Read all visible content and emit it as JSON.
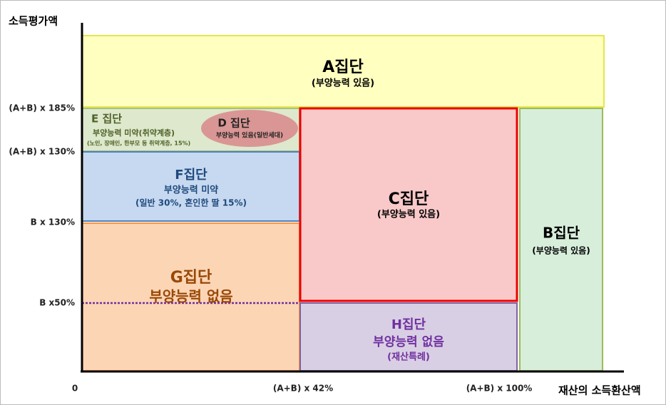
{
  "axes": {
    "y_title": "소득평가액",
    "x_title": "재산의 소득환산액",
    "origin": "0",
    "y_labels": [
      "(A+B) x 185%",
      "(A+B) x 130%",
      "B x 130%",
      "B x50%"
    ],
    "x_labels": [
      "(A+B) x 42%",
      "(A+B) x 100%"
    ]
  },
  "groups": {
    "A": {
      "name": "A집단",
      "desc": "(부양능력 있음)"
    },
    "E": {
      "name": "E 집단",
      "desc": "부양능력 미약(취약계층)",
      "note": "(노인, 장애인, 한부모 등 취약계층, 15%)"
    },
    "D": {
      "name": "D 집단",
      "desc": "부양능력 있음(일반세대)"
    },
    "F": {
      "name": "F집단",
      "desc": "부양능력 미약",
      "note": "(일반 30%, 혼인한 딸 15%)"
    },
    "G": {
      "name": "G집단",
      "desc": "부양능력 없음"
    },
    "C": {
      "name": "C집단",
      "desc": "(부양능력 있음)"
    },
    "H": {
      "name": "H집단",
      "desc": "부양능력 없음",
      "note": "(재산특례)"
    },
    "B": {
      "name": "B집단",
      "desc": "(부양능력 있음)"
    }
  }
}
